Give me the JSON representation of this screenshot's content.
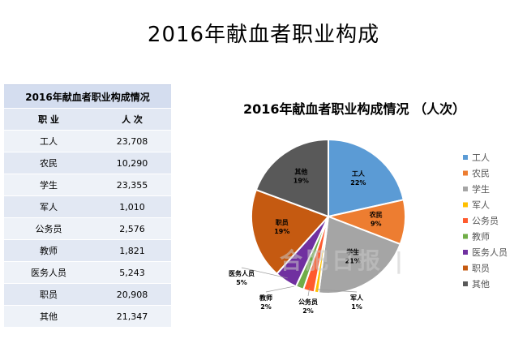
{
  "page_title": "2016年献血者职业构成",
  "watermark": "合肥日报 |",
  "table": {
    "caption": "2016年献血者职业构成情况",
    "headers": [
      "职 业",
      "人 次"
    ],
    "rows": [
      [
        "工人",
        "23,708"
      ],
      [
        "农民",
        "10,290"
      ],
      [
        "学生",
        "23,355"
      ],
      [
        "军人",
        "1,010"
      ],
      [
        "公务员",
        "2,576"
      ],
      [
        "教师",
        "1,821"
      ],
      [
        "医务人员",
        "5,243"
      ],
      [
        "职员",
        "20,908"
      ],
      [
        "其他",
        "21,347"
      ]
    ]
  },
  "chart_data": {
    "type": "pie",
    "title": "2016年献血者职业构成情况 （人次）",
    "legend_position": "right",
    "slices": [
      {
        "label": "工人",
        "value": 23708,
        "percent_label": "22%",
        "color": "#5b9bd5"
      },
      {
        "label": "农民",
        "value": 10290,
        "percent_label": "9%",
        "color": "#ed7d31"
      },
      {
        "label": "学生",
        "value": 23355,
        "percent_label": "21%",
        "color": "#a5a5a5"
      },
      {
        "label": "军人",
        "value": 1010,
        "percent_label": "1%",
        "color": "#ffc000"
      },
      {
        "label": "公务员",
        "value": 2576,
        "percent_label": "2%",
        "color": "#ff5b2e"
      },
      {
        "label": "教师",
        "value": 1821,
        "percent_label": "2%",
        "color": "#70ad47"
      },
      {
        "label": "医务人员",
        "value": 5243,
        "percent_label": "5%",
        "color": "#7030a0"
      },
      {
        "label": "职员",
        "value": 20908,
        "percent_label": "19%",
        "color": "#c55a11"
      },
      {
        "label": "其他",
        "value": 21347,
        "percent_label": "19%",
        "color": "#595959"
      }
    ]
  }
}
